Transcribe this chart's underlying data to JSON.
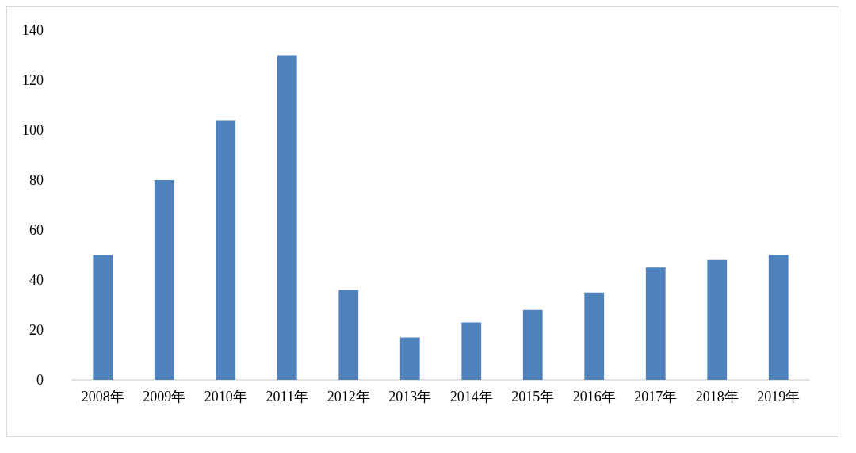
{
  "chart_data": {
    "type": "bar",
    "categories": [
      "2008年",
      "2009年",
      "2010年",
      "2011年",
      "2012年",
      "2013年",
      "2014年",
      "2015年",
      "2016年",
      "2017年",
      "2018年",
      "2019年"
    ],
    "values": [
      50,
      80,
      104,
      130,
      36,
      17,
      23,
      28,
      35,
      45,
      48,
      50
    ],
    "color": "#4f81bd",
    "ylim": [
      0,
      140
    ],
    "yticks": [
      0,
      20,
      40,
      60,
      80,
      100,
      120,
      140
    ]
  }
}
